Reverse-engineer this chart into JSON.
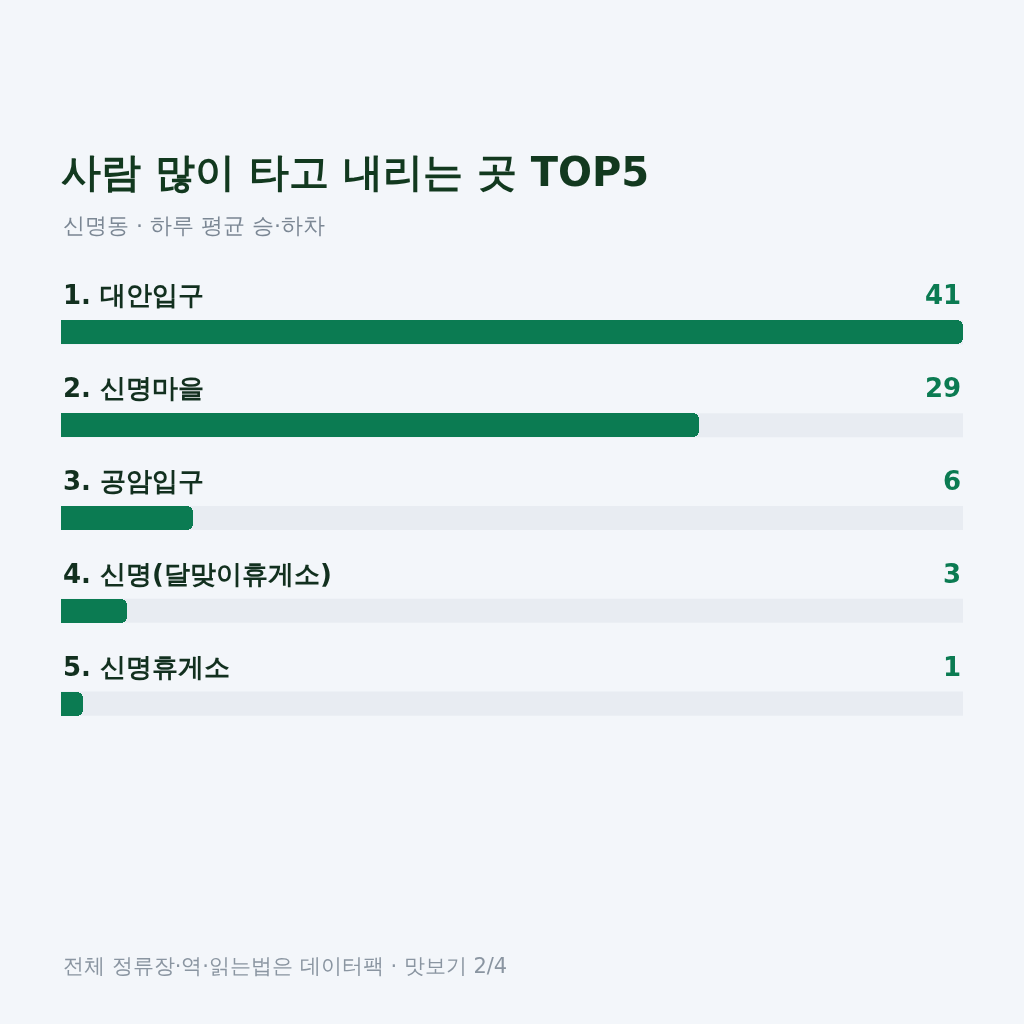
{
  "chart_data": {
    "type": "bar",
    "orientation": "horizontal",
    "title": "사람 많이 타고 내리는 곳 TOP5",
    "subtitle": "신명동 · 하루 평균 승·하차",
    "categories": [
      "1. 대안입구",
      "2. 신명마을",
      "3. 공암입구",
      "4. 신명(달맞이휴게소)",
      "5. 신명휴게소"
    ],
    "values": [
      41,
      29,
      6,
      3,
      1
    ],
    "color": "#0b7b52",
    "data_labels": true,
    "xlim": [
      0,
      41
    ],
    "tick_labels": false,
    "annotations": [
      "전체 정류장·역·읽는법은 데이터팩 · 맛보기 2/4"
    ]
  }
}
